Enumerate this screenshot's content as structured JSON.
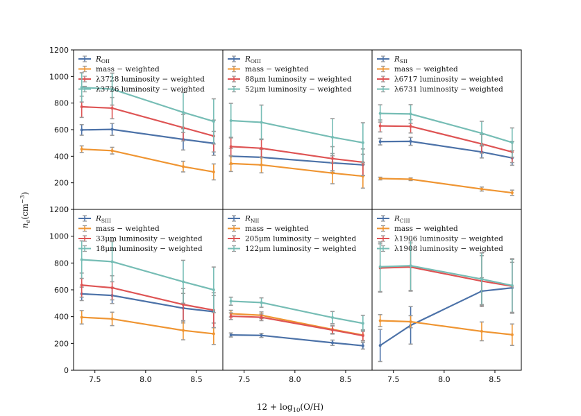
{
  "figure": {
    "xlabel_text": "12 + log",
    "xlabel_sub": "10",
    "xlabel_tail": "(O/H)",
    "ylabel_main": "n",
    "ylabel_sub": "e",
    "ylabel_tail": "(cm",
    "ylabel_sup": "−3",
    "ylabel_close": ")"
  },
  "colors": {
    "blue": "#4c72a8",
    "orange": "#ef9532",
    "red": "#de5454",
    "teal": "#76bdb5",
    "errorbar_gray": "#9a9a9a"
  },
  "chart_data": [
    {
      "type": "line",
      "panel": "R_OII",
      "x": [
        7.37,
        7.67,
        8.37,
        8.67
      ],
      "xticks": [
        7.5,
        8.0,
        8.5
      ],
      "yticks": [
        0,
        200,
        400,
        600,
        800,
        1000,
        1200
      ],
      "ylim": [
        0,
        1200
      ],
      "xlim": [
        7.29,
        8.76
      ],
      "series": [
        {
          "name": "R",
          "sub": "OII",
          "color": "blue",
          "values": [
            598,
            602,
            527,
            497
          ],
          "err": [
            40,
            45,
            80,
            90
          ]
        },
        {
          "name": "mass − weighted",
          "color": "orange",
          "values": [
            453,
            442,
            322,
            282
          ],
          "err": [
            25,
            25,
            40,
            60
          ]
        },
        {
          "name": "λ3728 luminosity − weighted",
          "color": "red",
          "values": [
            772,
            762,
            615,
            552
          ],
          "err": [
            80,
            80,
            100,
            120
          ]
        },
        {
          "name": "λ3726 luminosity − weighted",
          "color": "teal",
          "values": [
            918,
            905,
            730,
            662
          ],
          "err": [
            110,
            120,
            150,
            170
          ]
        }
      ]
    },
    {
      "type": "line",
      "panel": "R_OIII",
      "x": [
        7.37,
        7.67,
        8.37,
        8.67
      ],
      "xticks": [
        7.5,
        8.0,
        8.5
      ],
      "ylim": [
        0,
        1200
      ],
      "xlim": [
        7.29,
        8.76
      ],
      "series": [
        {
          "name": "R",
          "sub": "OIII",
          "color": "blue",
          "values": [
            400,
            392,
            350,
            335
          ],
          "err": [
            60,
            60,
            70,
            80
          ]
        },
        {
          "name": "mass − weighted",
          "color": "orange",
          "values": [
            345,
            335,
            273,
            250
          ],
          "err": [
            60,
            60,
            80,
            90
          ]
        },
        {
          "name": "88μm luminosity − weighted",
          "color": "red",
          "values": [
            473,
            460,
            382,
            355
          ],
          "err": [
            70,
            70,
            90,
            100
          ]
        },
        {
          "name": "52μm luminosity − weighted",
          "color": "teal",
          "values": [
            668,
            655,
            543,
            502
          ],
          "err": [
            130,
            130,
            140,
            150
          ]
        }
      ]
    },
    {
      "type": "line",
      "panel": "R_SII",
      "x": [
        7.37,
        7.67,
        8.37,
        8.67
      ],
      "xticks": [
        7.5,
        8.0,
        8.5
      ],
      "ylim": [
        0,
        1200
      ],
      "xlim": [
        7.29,
        8.76
      ],
      "series": [
        {
          "name": "R",
          "sub": "SII",
          "color": "blue",
          "values": [
            510,
            512,
            432,
            387
          ],
          "err": [
            25,
            30,
            45,
            55
          ]
        },
        {
          "name": "mass − weighted",
          "color": "orange",
          "values": [
            232,
            227,
            153,
            125
          ],
          "err": [
            10,
            10,
            15,
            20
          ]
        },
        {
          "name": "λ6717 luminosity − weighted",
          "color": "red",
          "values": [
            628,
            625,
            493,
            432
          ],
          "err": [
            45,
            50,
            70,
            80
          ]
        },
        {
          "name": "λ6731 luminosity − weighted",
          "color": "teal",
          "values": [
            722,
            718,
            573,
            503
          ],
          "err": [
            65,
            70,
            90,
            110
          ]
        }
      ]
    },
    {
      "type": "line",
      "panel": "R_SIII",
      "x": [
        7.37,
        7.67,
        8.37,
        8.67
      ],
      "xticks": [
        7.5,
        8.0,
        8.5
      ],
      "yticks": [
        0,
        200,
        400,
        600,
        800,
        1000,
        1200
      ],
      "ylim": [
        0,
        1200
      ],
      "xlim": [
        7.29,
        8.76
      ],
      "series": [
        {
          "name": "R",
          "sub": "SIII",
          "color": "blue",
          "values": [
            570,
            558,
            463,
            437
          ],
          "err": [
            50,
            60,
            110,
            120
          ]
        },
        {
          "name": "mass − weighted",
          "color": "orange",
          "values": [
            395,
            383,
            297,
            272
          ],
          "err": [
            50,
            50,
            70,
            80
          ]
        },
        {
          "name": "33μm luminosity − weighted",
          "color": "red",
          "values": [
            635,
            615,
            490,
            448
          ],
          "err": [
            90,
            90,
            120,
            130
          ]
        },
        {
          "name": "18μm luminosity − weighted",
          "color": "teal",
          "values": [
            825,
            810,
            660,
            600
          ],
          "err": [
            140,
            150,
            160,
            170
          ]
        }
      ]
    },
    {
      "type": "line",
      "panel": "R_NII",
      "x": [
        7.37,
        7.67,
        8.37,
        8.67
      ],
      "xticks": [
        7.5,
        8.0,
        8.5
      ],
      "ylim": [
        0,
        1200
      ],
      "xlim": [
        7.29,
        8.76
      ],
      "series": [
        {
          "name": "R",
          "sub": "NII",
          "color": "blue",
          "values": [
            263,
            260,
            205,
            183
          ],
          "err": [
            15,
            15,
            20,
            25
          ]
        },
        {
          "name": "mass − weighted",
          "color": "orange",
          "values": [
            422,
            410,
            305,
            262
          ],
          "err": [
            25,
            25,
            30,
            40
          ]
        },
        {
          "name": "205μm luminosity − weighted",
          "color": "red",
          "values": [
            403,
            395,
            300,
            258
          ],
          "err": [
            25,
            25,
            30,
            40
          ]
        },
        {
          "name": "122μm luminosity − weighted",
          "color": "teal",
          "values": [
            515,
            505,
            393,
            350
          ],
          "err": [
            30,
            35,
            45,
            60
          ]
        }
      ]
    },
    {
      "type": "line",
      "panel": "R_CIII",
      "x": [
        7.37,
        7.67,
        8.37,
        8.67
      ],
      "xticks": [
        7.5,
        8.0,
        8.5
      ],
      "ylim": [
        0,
        1200
      ],
      "xlim": [
        7.29,
        8.76
      ],
      "series": [
        {
          "name": "R",
          "sub": "CIII",
          "color": "blue",
          "values": [
            185,
            335,
            590,
            615
          ],
          "err": [
            120,
            140,
            100,
            190
          ]
        },
        {
          "name": "mass − weighted",
          "color": "orange",
          "values": [
            370,
            362,
            290,
            265
          ],
          "err": [
            45,
            45,
            70,
            80
          ]
        },
        {
          "name": "λ1906 luminosity − weighted",
          "color": "red",
          "values": [
            763,
            770,
            665,
            627
          ],
          "err": [
            180,
            180,
            190,
            200
          ]
        },
        {
          "name": "λ1908 luminosity − weighted",
          "color": "teal",
          "values": [
            772,
            780,
            680,
            632
          ],
          "err": [
            185,
            185,
            195,
            200
          ]
        }
      ]
    }
  ]
}
